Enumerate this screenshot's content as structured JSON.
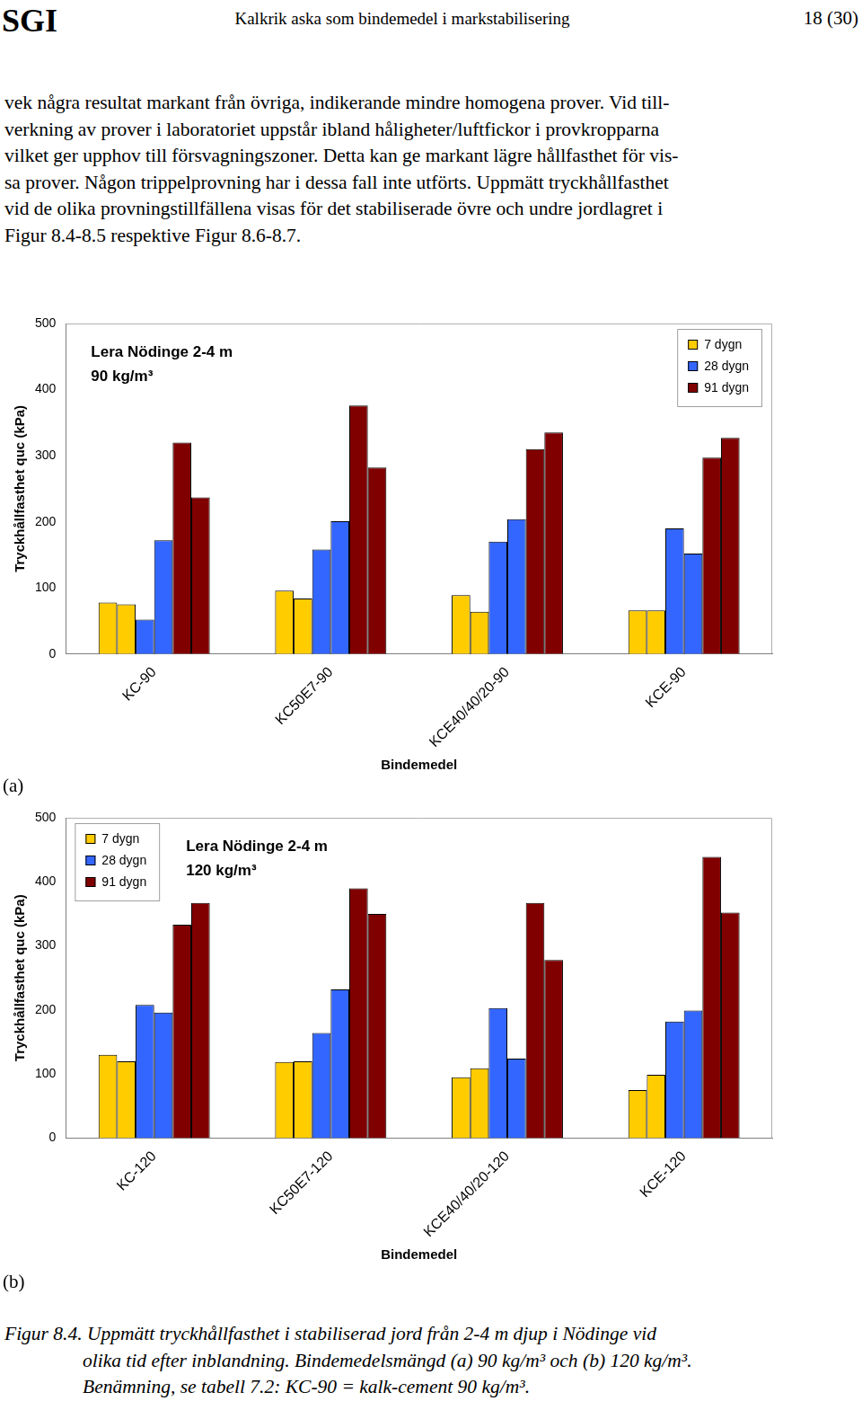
{
  "header": {
    "left": "SGI",
    "center": "Kalkrik aska som bindemedel i markstabilisering",
    "right": "18 (30)"
  },
  "paragraph_lines": [
    "vek några resultat markant från övriga, indikerande mindre homogena prover. Vid till-",
    "verkning av prover i laboratoriet uppstår ibland håligheter/luftfickor i provkropparna",
    "vilket ger upphov till försvagningszoner. Detta kan ge markant lägre hållfasthet för vis-",
    "sa prover. Någon trippelprovning har i dessa fall inte utförts. Uppmätt tryckhållfasthet",
    "vid de olika provningstillfällena visas för det stabiliserade övre och undre jordlagret i",
    "Figur 8.4-8.5 respektive Figur 8.6-8.7."
  ],
  "chart_data": [
    {
      "panel": "(a)",
      "type": "bar",
      "title": "Lera Nödinge 2-4 m",
      "subtitle": "90 kg/m³",
      "x_label": "Bindemedel",
      "y_label": "Tryckhållfasthet quc (kPa)",
      "categories": [
        "KC-90",
        "KC50E7-90",
        "KCE40/40/20-90",
        "KCE-90"
      ],
      "series": [
        {
          "name": "7 dygn",
          "color": "#ffcc00",
          "values": [
            [
              78,
              75
            ],
            [
              96,
              84
            ],
            [
              89,
              64
            ],
            [
              66,
              66
            ]
          ]
        },
        {
          "name": "28 dygn",
          "color": "#3366ff",
          "values": [
            [
              52,
              172
            ],
            [
              158,
              201
            ],
            [
              170,
              204
            ],
            [
              190,
              152
            ]
          ]
        },
        {
          "name": "91 dygn",
          "color": "#800000",
          "values": [
            [
              320,
              237
            ],
            [
              376,
              282
            ],
            [
              310,
              335
            ],
            [
              297,
              327
            ]
          ]
        }
      ],
      "ylim": [
        0,
        500
      ],
      "yticks": [
        0,
        100,
        200,
        300,
        400,
        500
      ],
      "grid": false,
      "legend": "upper right"
    },
    {
      "panel": "(b)",
      "type": "bar",
      "title": "Lera Nödinge 2-4 m",
      "subtitle": "120 kg/m³",
      "x_label": "Bindemedel",
      "y_label": "Tryckhållfasthet quc (kPa)",
      "categories": [
        "KC-120",
        "KC50E7-120",
        "KCE40/40/20-120",
        "KCE-120"
      ],
      "series": [
        {
          "name": "7 dygn",
          "color": "#ffcc00",
          "values": [
            [
              130,
              120
            ],
            [
              119,
              120
            ],
            [
              95,
              109
            ],
            [
              75,
              99
            ]
          ]
        },
        {
          "name": "28 dygn",
          "color": "#3366ff",
          "values": [
            [
              208,
              196
            ],
            [
              164,
              232
            ],
            [
              203,
              124
            ],
            [
              182,
              199
            ]
          ]
        },
        {
          "name": "91 dygn",
          "color": "#800000",
          "values": [
            [
              333,
              367
            ],
            [
              390,
              350
            ],
            [
              367,
              278
            ],
            [
              439,
              352
            ]
          ]
        }
      ],
      "ylim": [
        0,
        500
      ],
      "yticks": [
        0,
        100,
        200,
        300,
        400,
        500
      ],
      "grid": false,
      "legend": "upper left"
    }
  ],
  "caption_lines": [
    "Figur 8.4. Uppmätt tryckhållfasthet i stabiliserad jord från 2-4 m djup i Nödinge vid",
    "olika tid efter inblandning. Bindemedelsmängd (a) 90 kg/m³ och (b) 120 kg/m³.",
    "Benämning, se tabell 7.2: KC-90 = kalk-cement 90 kg/m³."
  ]
}
